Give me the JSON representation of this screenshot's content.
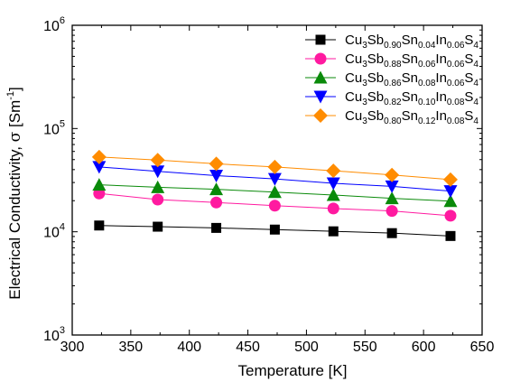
{
  "chart_data": {
    "type": "line",
    "xlabel": "Temperature [K]",
    "ylabel": {
      "text": "Electrical Conductivity, ",
      "symbol": "σ",
      "unit_open": " [Sm",
      "unit_exp": "-1",
      "unit_close": "]"
    },
    "xlim": [
      300,
      650
    ],
    "ylim": [
      1000,
      1000000
    ],
    "yscale": "log",
    "xticks": [
      "300",
      "350",
      "400",
      "450",
      "500",
      "550",
      "600",
      "650"
    ],
    "yticks": [
      {
        "value": 1000,
        "base": "10",
        "exp": "3"
      },
      {
        "value": 10000,
        "base": "10",
        "exp": "4"
      },
      {
        "value": 100000,
        "base": "10",
        "exp": "5"
      },
      {
        "value": 1000000,
        "base": "10",
        "exp": "6"
      }
    ],
    "grid": false,
    "legend_position": "top-right",
    "x": [
      323,
      373,
      423,
      473,
      523,
      573,
      623
    ],
    "series": [
      {
        "name": "Cu3Sb0.90Sn0.04In0.06S4",
        "label_parts": [
          [
            "Cu",
            ""
          ],
          [
            "3",
            "sub"
          ],
          [
            "Sb",
            ""
          ],
          [
            "0.90",
            "sub"
          ],
          [
            "Sn",
            ""
          ],
          [
            "0.04",
            "sub"
          ],
          [
            "In",
            ""
          ],
          [
            "0.06",
            "sub"
          ],
          [
            "S",
            ""
          ],
          [
            "4",
            "sub"
          ]
        ],
        "marker": "square",
        "color": "#000000",
        "values": [
          11500,
          11200,
          10900,
          10500,
          10100,
          9700,
          9100
        ]
      },
      {
        "name": "Cu3Sb0.88Sn0.06In0.06S4",
        "label_parts": [
          [
            "Cu",
            ""
          ],
          [
            "3",
            "sub"
          ],
          [
            "Sb",
            ""
          ],
          [
            "0.88",
            "sub"
          ],
          [
            "Sn",
            ""
          ],
          [
            "0.06",
            "sub"
          ],
          [
            "In",
            ""
          ],
          [
            "0.06",
            "sub"
          ],
          [
            "S",
            ""
          ],
          [
            "4",
            "sub"
          ]
        ],
        "marker": "circle",
        "color": "#ff1aa0",
        "values": [
          23500,
          20500,
          19200,
          17900,
          16800,
          15900,
          14300
        ]
      },
      {
        "name": "Cu3Sb0.86Sn0.08In0.06S4",
        "label_parts": [
          [
            "Cu",
            ""
          ],
          [
            "3",
            "sub"
          ],
          [
            "Sb",
            ""
          ],
          [
            "0.86",
            "sub"
          ],
          [
            "Sn",
            ""
          ],
          [
            "0.08",
            "sub"
          ],
          [
            "In",
            ""
          ],
          [
            "0.06",
            "sub"
          ],
          [
            "S",
            ""
          ],
          [
            "4",
            "sub"
          ]
        ],
        "marker": "triangle-up",
        "color": "#0a8a0a",
        "values": [
          28500,
          27000,
          25800,
          24200,
          22700,
          21100,
          19800
        ]
      },
      {
        "name": "Cu3Sb0.82Sn0.10In0.08S4",
        "label_parts": [
          [
            "Cu",
            ""
          ],
          [
            "3",
            "sub"
          ],
          [
            "Sb",
            ""
          ],
          [
            "0.82",
            "sub"
          ],
          [
            "Sn",
            ""
          ],
          [
            "0.10",
            "sub"
          ],
          [
            "In",
            ""
          ],
          [
            "0.08",
            "sub"
          ],
          [
            "S",
            ""
          ],
          [
            "4",
            "sub"
          ]
        ],
        "marker": "triangle-down",
        "color": "#0000ff",
        "values": [
          42500,
          38500,
          35000,
          32500,
          29500,
          27500,
          24800
        ]
      },
      {
        "name": "Cu3Sb0.80Sn0.12In0.08S4",
        "label_parts": [
          [
            "Cu",
            ""
          ],
          [
            "3",
            "sub"
          ],
          [
            "Sb",
            ""
          ],
          [
            "0.80",
            "sub"
          ],
          [
            "Sn",
            ""
          ],
          [
            "0.12",
            "sub"
          ],
          [
            "In",
            ""
          ],
          [
            "0.08",
            "sub"
          ],
          [
            "S",
            ""
          ],
          [
            "4",
            "sub"
          ]
        ],
        "marker": "diamond",
        "color": "#ff8c00",
        "values": [
          53000,
          49500,
          45500,
          42500,
          39000,
          35500,
          32000
        ]
      }
    ]
  }
}
